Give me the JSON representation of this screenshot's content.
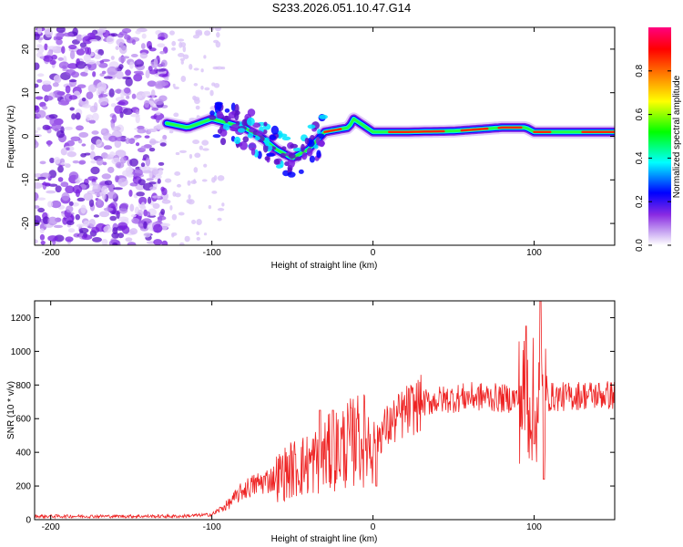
{
  "figure_title": "S233.2026.051.10.47.G14",
  "colors": {
    "snr_line": "#ee2222",
    "ridge_core": "#ff2a00",
    "cloud": "#7a1fe0"
  },
  "chart_data": [
    {
      "type": "heatmap",
      "title": "S233.2026.051.10.47.G14",
      "xlabel": "Height of straight line (km)",
      "ylabel": "Frequency (Hz)",
      "xlim": [
        -210,
        150
      ],
      "ylim": [
        -25,
        25
      ],
      "x_ticks": [
        -200,
        -100,
        0,
        100
      ],
      "y_ticks": [
        -20,
        -10,
        0,
        10,
        20
      ],
      "colorbar": {
        "label": "Normalized spectral amplitude",
        "range": [
          0,
          1
        ],
        "ticks": [
          "0.0",
          "0.2",
          "0.4",
          "0.6",
          "0.8"
        ],
        "tick_values": [
          0,
          0.2,
          0.4,
          0.6,
          0.8
        ],
        "colormap": [
          "#ffffff",
          "#c9a8f2",
          "#8a2be2",
          "#0000ff",
          "#00ffff",
          "#00ff00",
          "#ffff00",
          "#ff8000",
          "#ff0000",
          "#ff0080"
        ]
      },
      "ridge": {
        "description_points_km_hz": [
          [
            -128,
            3
          ],
          [
            -115,
            2
          ],
          [
            -100,
            4
          ],
          [
            -90,
            3
          ],
          [
            -80,
            2
          ],
          [
            -70,
            0
          ],
          [
            -60,
            -3
          ],
          [
            -50,
            -5
          ],
          [
            -40,
            -3
          ],
          [
            -30,
            1
          ],
          [
            -15,
            2
          ],
          [
            -12,
            4
          ],
          [
            0,
            1
          ],
          [
            20,
            1
          ],
          [
            50,
            1.2
          ],
          [
            80,
            2
          ],
          [
            95,
            2
          ],
          [
            100,
            1
          ],
          [
            150,
            1
          ]
        ]
      },
      "noise_region_km": [
        -210,
        -128
      ]
    },
    {
      "type": "line",
      "xlabel": "Height of straight line (km)",
      "ylabel": "SNR (10 * v/v)",
      "xlim": [
        -210,
        150
      ],
      "ylim": [
        0,
        1300
      ],
      "x_ticks": [
        -200,
        -100,
        0,
        100
      ],
      "y_ticks": [
        0,
        200,
        400,
        600,
        800,
        1000,
        1200
      ],
      "series": [
        {
          "name": "SNR",
          "x": [
            -210,
            -180,
            -150,
            -120,
            -100,
            -90,
            -80,
            -70,
            -60,
            -50,
            -40,
            -30,
            -20,
            -10,
            0,
            10,
            20,
            30,
            40,
            50,
            60,
            70,
            80,
            90,
            95,
            100,
            103,
            106,
            110,
            120,
            130,
            140,
            150
          ],
          "values": [
            20,
            20,
            20,
            20,
            30,
            90,
            180,
            220,
            250,
            300,
            330,
            380,
            430,
            470,
            480,
            560,
            640,
            690,
            710,
            720,
            730,
            730,
            720,
            720,
            720,
            700,
            720,
            700,
            730,
            730,
            740,
            740,
            740
          ],
          "spikes": [
            [
              -33,
              650
            ],
            [
              -25,
              650
            ],
            [
              -10,
              600
            ],
            [
              2,
              200
            ],
            [
              95,
              1150
            ],
            [
              100,
              450
            ],
            [
              104,
              1300
            ],
            [
              106,
              240
            ]
          ]
        }
      ]
    }
  ]
}
